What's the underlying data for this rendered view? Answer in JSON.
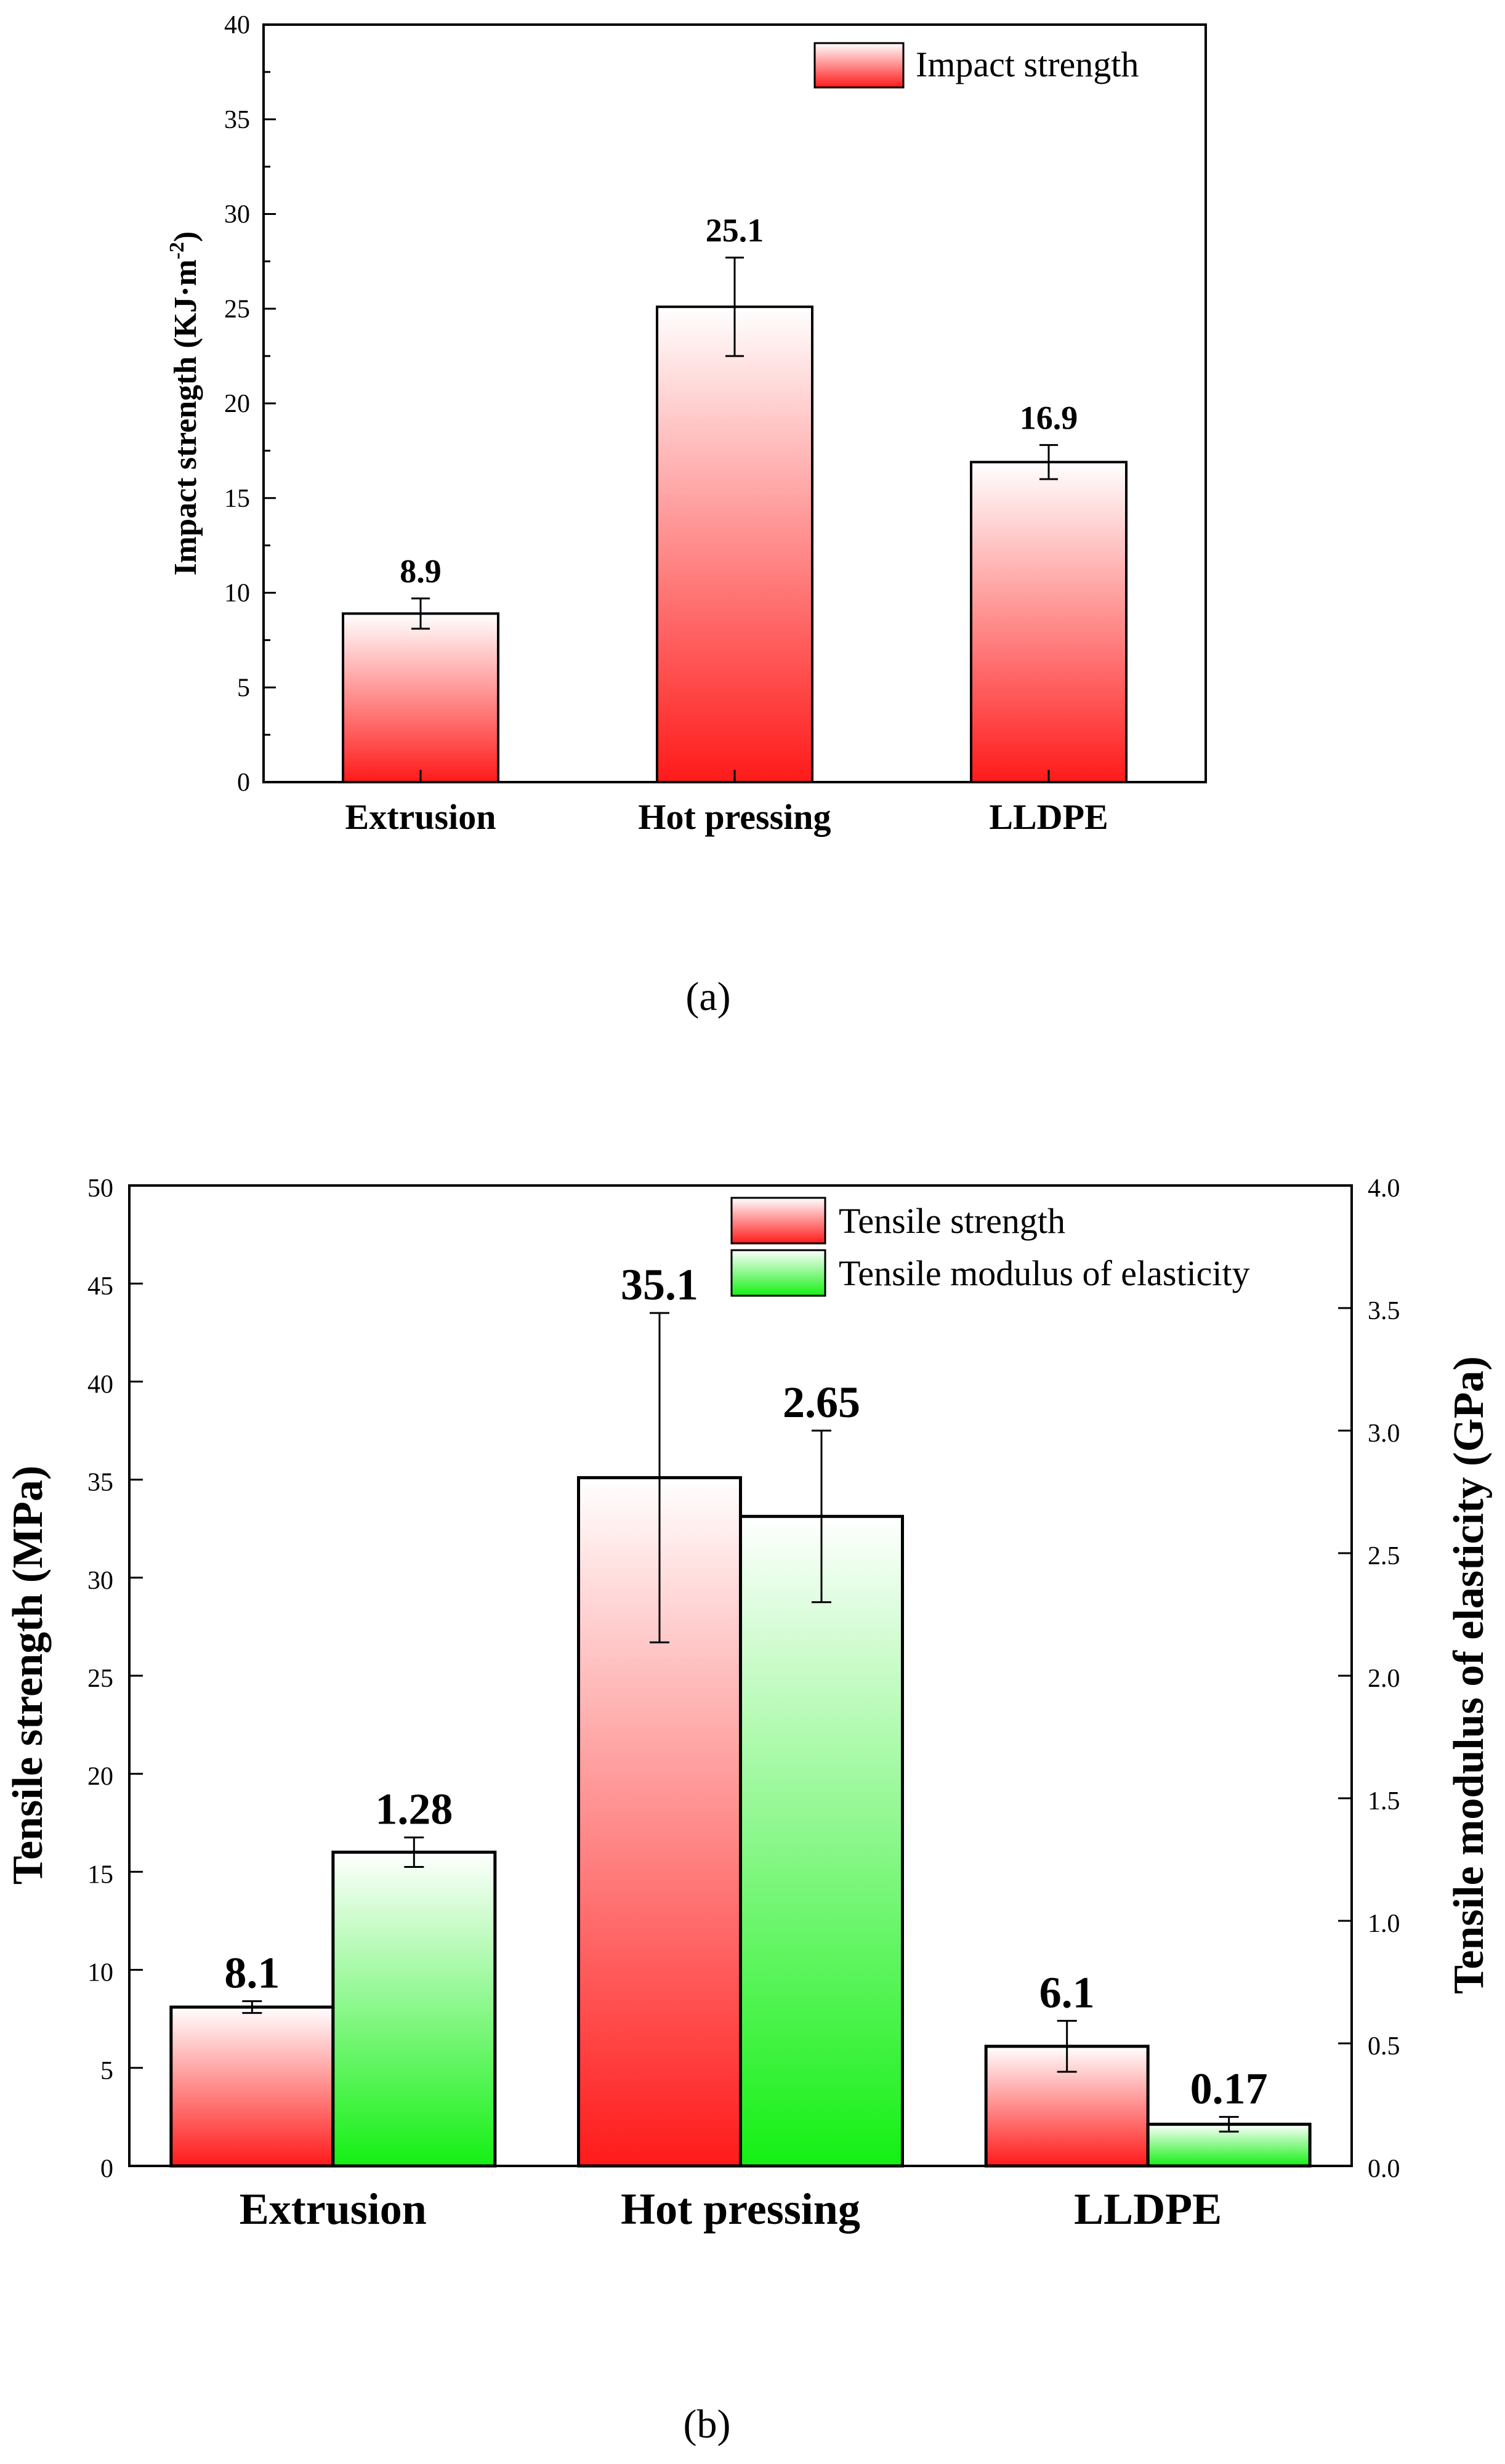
{
  "chart_data": [
    {
      "id": "a",
      "type": "bar",
      "caption": "(a)",
      "categories": [
        "Extrusion",
        "Hot pressing",
        "LLDPE"
      ],
      "series": [
        {
          "name": "Impact strength",
          "values": [
            8.9,
            25.1,
            16.9
          ],
          "errors": [
            0.8,
            2.6,
            0.9
          ],
          "labels": [
            "8.9",
            "25.1",
            "16.9"
          ],
          "color": "#ff2020"
        }
      ],
      "ylabel": "Impact strength (KJ·m⁻²)",
      "ylabel_main": "Impact strength (KJ·m",
      "ylabel_sup": "-2",
      "ylabel_close": ")",
      "ylim": [
        0,
        40
      ],
      "yticks": [
        "0",
        "5",
        "10",
        "15",
        "20",
        "25",
        "30",
        "35",
        "40"
      ],
      "legend_position": "top-right",
      "grid": false
    },
    {
      "id": "b",
      "type": "bar",
      "caption": "(b)",
      "categories": [
        "Extrusion",
        "Hot pressing",
        "LLDPE"
      ],
      "series": [
        {
          "name": "Tensile strength",
          "axis": "left",
          "values": [
            8.1,
            35.1,
            6.1
          ],
          "errors": [
            0.3,
            8.4,
            1.3
          ],
          "labels": [
            "8.1",
            "35.1",
            "6.1"
          ],
          "color": "#ff2020"
        },
        {
          "name": "Tensile modulus of elasticity",
          "axis": "right",
          "values": [
            1.28,
            2.65,
            0.17
          ],
          "errors": [
            0.06,
            0.35,
            0.03
          ],
          "labels": [
            "1.28",
            "2.65",
            "0.17"
          ],
          "color": "#20f020"
        }
      ],
      "ylabel": "Tensile strength (MPa)",
      "ylabel_right": "Tensile modulus of elasticity (GPa)",
      "ylim": [
        0,
        50
      ],
      "ylim_right": [
        0,
        4.0
      ],
      "yticks": [
        "0",
        "5",
        "10",
        "15",
        "20",
        "25",
        "30",
        "35",
        "40",
        "45",
        "50"
      ],
      "yticks_right": [
        "0.0",
        "0.5",
        "1.0",
        "1.5",
        "2.0",
        "2.5",
        "3.0",
        "3.5",
        "4.0"
      ],
      "legend_position": "top-right",
      "grid": false
    }
  ]
}
